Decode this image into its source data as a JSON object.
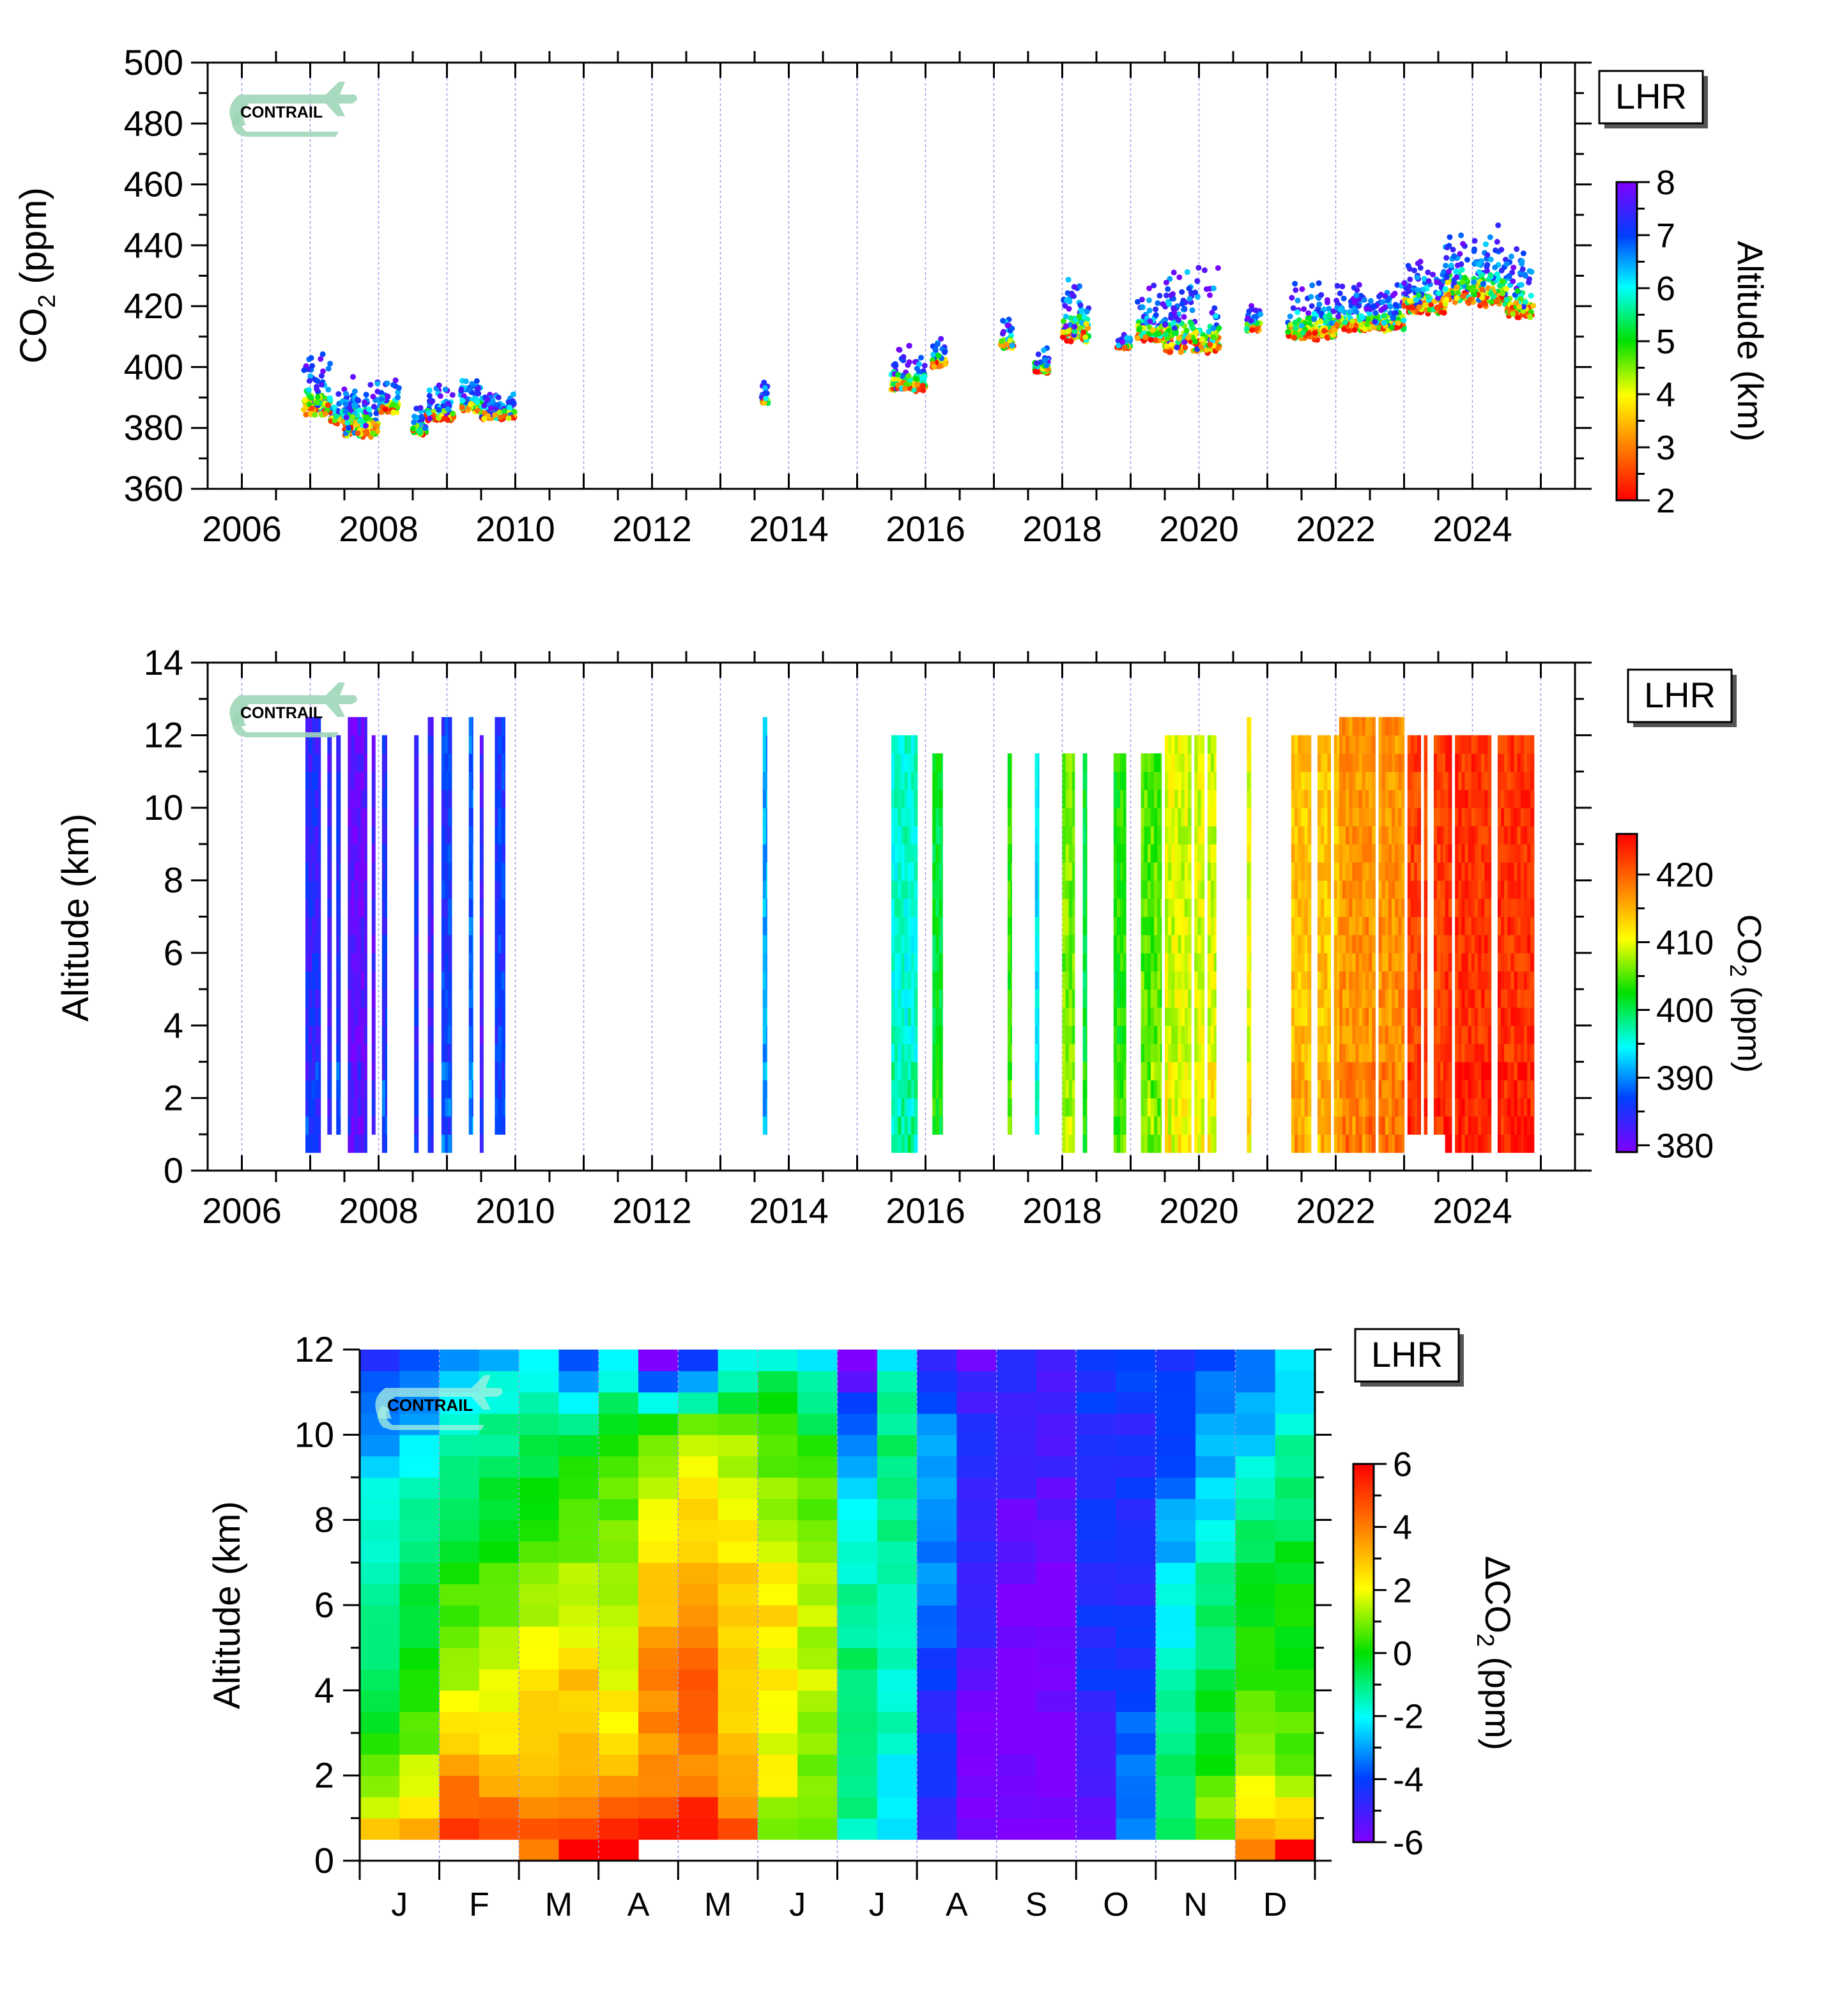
{
  "station_label": "LHR",
  "logo_text": "CONTRAIL",
  "colors": {
    "gridline": "#9b9be8",
    "axis": "#000000",
    "rainbow_low_to_high": [
      "#ff0000",
      "#ff8000",
      "#ffff00",
      "#00e000",
      "#00ffff",
      "#0040ff",
      "#8000ff"
    ]
  },
  "chart_data": [
    {
      "id": "co2-timeseries",
      "type": "scatter",
      "title": "",
      "ylabel": "CO2 (ppm)",
      "xlabel": "",
      "xlim": [
        2005.5,
        2025.5
      ],
      "ylim": [
        360,
        500
      ],
      "xticks": [
        2006,
        2008,
        2010,
        2012,
        2014,
        2016,
        2018,
        2020,
        2022,
        2024
      ],
      "yticks": [
        360,
        380,
        400,
        420,
        440,
        460,
        480,
        500
      ],
      "grid": "vertical dotted at each year",
      "colorbar": {
        "label": "Altitude (km)",
        "range": [
          2,
          8
        ],
        "ticks": [
          2,
          3,
          4,
          5,
          6,
          7,
          8
        ],
        "colormap": "rainbow, red=low, purple=high"
      },
      "approx_periods": [
        {
          "start": 2006.9,
          "end": 2007.3,
          "ppm_min": 380,
          "ppm_max": 405
        },
        {
          "start": 2007.3,
          "end": 2007.7,
          "ppm_min": 379,
          "ppm_max": 393
        },
        {
          "start": 2007.5,
          "end": 2008.0,
          "ppm_min": 373,
          "ppm_max": 398
        },
        {
          "start": 2008.0,
          "end": 2008.3,
          "ppm_min": 383,
          "ppm_max": 396
        },
        {
          "start": 2008.5,
          "end": 2008.7,
          "ppm_min": 376,
          "ppm_max": 387
        },
        {
          "start": 2008.7,
          "end": 2009.1,
          "ppm_min": 380,
          "ppm_max": 394
        },
        {
          "start": 2009.2,
          "end": 2009.5,
          "ppm_min": 383,
          "ppm_max": 396
        },
        {
          "start": 2009.5,
          "end": 2010.0,
          "ppm_min": 381,
          "ppm_max": 392
        },
        {
          "start": 2013.6,
          "end": 2013.7,
          "ppm_min": 386,
          "ppm_max": 396
        },
        {
          "start": 2015.5,
          "end": 2016.0,
          "ppm_min": 389,
          "ppm_max": 407
        },
        {
          "start": 2016.1,
          "end": 2016.3,
          "ppm_min": 398,
          "ppm_max": 410
        },
        {
          "start": 2017.1,
          "end": 2017.3,
          "ppm_min": 404,
          "ppm_max": 416
        },
        {
          "start": 2017.6,
          "end": 2017.8,
          "ppm_min": 396,
          "ppm_max": 408
        },
        {
          "start": 2018.0,
          "end": 2018.4,
          "ppm_min": 404,
          "ppm_max": 430
        },
        {
          "start": 2018.8,
          "end": 2019.0,
          "ppm_min": 405,
          "ppm_max": 411
        },
        {
          "start": 2019.1,
          "end": 2019.6,
          "ppm_min": 404,
          "ppm_max": 427
        },
        {
          "start": 2019.5,
          "end": 2020.3,
          "ppm_min": 399,
          "ppm_max": 433
        },
        {
          "start": 2020.7,
          "end": 2020.9,
          "ppm_min": 410,
          "ppm_max": 421
        },
        {
          "start": 2021.3,
          "end": 2022.0,
          "ppm_min": 405,
          "ppm_max": 429
        },
        {
          "start": 2022.0,
          "end": 2023.0,
          "ppm_min": 409,
          "ppm_max": 427
        },
        {
          "start": 2023.0,
          "end": 2023.6,
          "ppm_min": 414,
          "ppm_max": 436
        },
        {
          "start": 2023.6,
          "end": 2024.5,
          "ppm_min": 415,
          "ppm_max": 447
        },
        {
          "start": 2024.5,
          "end": 2024.9,
          "ppm_min": 412,
          "ppm_max": 439
        }
      ]
    },
    {
      "id": "co2-altitude-time",
      "type": "heatmap",
      "title": "",
      "ylabel": "Altitude (km)",
      "xlabel": "",
      "xlim": [
        2005.5,
        2025.5
      ],
      "ylim": [
        0,
        14
      ],
      "xticks": [
        2006,
        2008,
        2010,
        2012,
        2014,
        2016,
        2018,
        2020,
        2022,
        2024
      ],
      "yticks": [
        0,
        2,
        4,
        6,
        8,
        10,
        12,
        14
      ],
      "colorbar": {
        "label": "CO2 (ppm)",
        "range": [
          379,
          426
        ],
        "ticks": [
          380,
          390,
          400,
          410,
          420
        ],
        "colormap": "rainbow, purple=low, red=high"
      },
      "approx_columns": [
        {
          "x": 2006.93,
          "w": 0.22,
          "ppm": 384,
          "zmin": 0.5,
          "zmax": 12.5
        },
        {
          "x": 2007.25,
          "w": 0.06,
          "ppm": 383,
          "zmin": 1.0,
          "zmax": 12.0
        },
        {
          "x": 2007.38,
          "w": 0.06,
          "ppm": 385,
          "zmin": 1.0,
          "zmax": 12.0
        },
        {
          "x": 2007.55,
          "w": 0.28,
          "ppm": 381,
          "zmin": 0.5,
          "zmax": 12.5
        },
        {
          "x": 2007.9,
          "w": 0.05,
          "ppm": 382,
          "zmin": 1.0,
          "zmax": 12.0
        },
        {
          "x": 2008.05,
          "w": 0.07,
          "ppm": 385,
          "zmin": 0.5,
          "zmax": 12.0
        },
        {
          "x": 2008.52,
          "w": 0.06,
          "ppm": 384,
          "zmin": 0.5,
          "zmax": 12.0
        },
        {
          "x": 2008.72,
          "w": 0.08,
          "ppm": 383,
          "zmin": 0.5,
          "zmax": 12.5
        },
        {
          "x": 2008.92,
          "w": 0.15,
          "ppm": 386,
          "zmin": 0.5,
          "zmax": 12.5
        },
        {
          "x": 2009.32,
          "w": 0.06,
          "ppm": 388,
          "zmin": 1.0,
          "zmax": 12.5
        },
        {
          "x": 2009.48,
          "w": 0.05,
          "ppm": 383,
          "zmin": 0.5,
          "zmax": 12.0
        },
        {
          "x": 2009.7,
          "w": 0.15,
          "ppm": 386,
          "zmin": 1.0,
          "zmax": 12.5
        },
        {
          "x": 2013.62,
          "w": 0.06,
          "ppm": 391,
          "zmin": 1.0,
          "zmax": 12.5
        },
        {
          "x": 2015.5,
          "w": 0.38,
          "ppm": 396,
          "zmin": 0.5,
          "zmax": 12.0
        },
        {
          "x": 2016.1,
          "w": 0.15,
          "ppm": 401,
          "zmin": 1.0,
          "zmax": 11.5
        },
        {
          "x": 2017.2,
          "w": 0.06,
          "ppm": 404,
          "zmin": 1.0,
          "zmax": 11.5
        },
        {
          "x": 2017.6,
          "w": 0.06,
          "ppm": 394,
          "zmin": 1.0,
          "zmax": 11.5
        },
        {
          "x": 2018.0,
          "w": 0.18,
          "ppm": 406,
          "zmin": 0.5,
          "zmax": 11.5
        },
        {
          "x": 2018.3,
          "w": 0.06,
          "ppm": 401,
          "zmin": 0.5,
          "zmax": 11.5
        },
        {
          "x": 2018.75,
          "w": 0.18,
          "ppm": 403,
          "zmin": 0.5,
          "zmax": 11.5
        },
        {
          "x": 2019.15,
          "w": 0.3,
          "ppm": 405,
          "zmin": 0.5,
          "zmax": 11.5
        },
        {
          "x": 2019.5,
          "w": 0.75,
          "ppm": 409,
          "zmin": 0.5,
          "zmax": 12.0
        },
        {
          "x": 2020.7,
          "w": 0.06,
          "ppm": 410,
          "zmin": 0.5,
          "zmax": 12.5
        },
        {
          "x": 2021.35,
          "w": 0.7,
          "ppm": 414,
          "zmin": 0.5,
          "zmax": 12.0
        },
        {
          "x": 2022.05,
          "w": 0.95,
          "ppm": 417,
          "zmin": 0.5,
          "zmax": 12.5
        },
        {
          "x": 2023.05,
          "w": 0.55,
          "ppm": 422,
          "zmin": 1.0,
          "zmax": 12.0
        },
        {
          "x": 2023.6,
          "w": 1.3,
          "ppm": 423,
          "zmin": 0.5,
          "zmax": 12.0
        }
      ]
    },
    {
      "id": "seasonal-anomaly",
      "type": "heatmap",
      "title": "",
      "ylabel": "Altitude (km)",
      "xlabel": "",
      "categories": [
        "J",
        "F",
        "M",
        "A",
        "M",
        "J",
        "J",
        "A",
        "S",
        "O",
        "N",
        "D"
      ],
      "ylim": [
        0,
        12
      ],
      "yticks": [
        0,
        2,
        4,
        6,
        8,
        10,
        12
      ],
      "colorbar": {
        "label": "ΔCO2 (ppm)",
        "range": [
          -6,
          6
        ],
        "ticks": [
          -6,
          -4,
          -2,
          0,
          2,
          4,
          6
        ],
        "colormap": "rainbow, purple=low, red=high"
      },
      "grid": "24 half-month columns x 24 half-km rows (0-12 km)",
      "approx_anchors_km": [
        0.75,
        2,
        4,
        6,
        8,
        10,
        11.75
      ],
      "approx_values_by_half_month": [
        [
          2.5,
          1.0,
          -1.0,
          -1.0,
          -1.5,
          -3.0,
          -4.5
        ],
        [
          3.0,
          1.5,
          0.0,
          -0.5,
          -1.0,
          -2.5,
          -4.0
        ],
        [
          5.5,
          3.5,
          1.5,
          0.5,
          -0.5,
          -1.5,
          -3.0
        ],
        [
          5.0,
          3.0,
          2.0,
          1.0,
          0.0,
          -1.0,
          -2.5
        ],
        [
          4.5,
          3.0,
          2.5,
          1.5,
          0.0,
          -0.5,
          -2.0
        ],
        [
          5.0,
          3.0,
          3.0,
          1.5,
          0.5,
          -0.5,
          -4.0
        ],
        [
          5.0,
          3.0,
          2.0,
          1.5,
          1.0,
          0.0,
          -2.0
        ],
        [
          5.5,
          3.5,
          4.0,
          3.0,
          2.0,
          1.0,
          -6.0
        ],
        [
          6.0,
          4.0,
          4.5,
          3.5,
          2.5,
          1.5,
          -4.5
        ],
        [
          4.5,
          3.0,
          2.5,
          3.0,
          2.0,
          1.0,
          -2.0
        ],
        [
          1.0,
          2.0,
          2.0,
          2.5,
          1.5,
          0.5,
          -1.5
        ],
        [
          0.5,
          1.0,
          1.5,
          1.5,
          1.0,
          0.0,
          -2.0
        ],
        [
          -1.5,
          -1.0,
          -1.0,
          -1.0,
          -2.0,
          -3.0,
          -6.0
        ],
        [
          -2.5,
          -2.0,
          -1.5,
          -1.5,
          -1.0,
          -1.0,
          -2.0
        ],
        [
          -5.0,
          -4.5,
          -4.5,
          -3.5,
          -3.0,
          -3.0,
          -5.0
        ],
        [
          -6.0,
          -6.0,
          -5.5,
          -5.0,
          -5.0,
          -4.5,
          -5.5
        ],
        [
          -6.0,
          -6.0,
          -6.0,
          -6.0,
          -5.5,
          -5.0,
          -4.5
        ],
        [
          -6.0,
          -6.0,
          -6.0,
          -6.0,
          -5.5,
          -5.0,
          -5.0
        ],
        [
          -5.5,
          -5.0,
          -4.5,
          -4.5,
          -4.5,
          -4.5,
          -4.0
        ],
        [
          -3.0,
          -3.5,
          -4.0,
          -4.5,
          -4.5,
          -4.5,
          -4.0
        ],
        [
          -1.0,
          -1.0,
          -1.5,
          -2.0,
          -3.0,
          -4.0,
          -4.5
        ],
        [
          1.0,
          0.5,
          -0.5,
          -1.0,
          -2.0,
          -3.0,
          -4.0
        ],
        [
          3.0,
          1.5,
          0.5,
          0.0,
          -1.0,
          -2.5,
          -3.5
        ],
        [
          3.0,
          1.0,
          0.5,
          0.0,
          -0.5,
          -1.5,
          -2.5
        ]
      ]
    }
  ]
}
